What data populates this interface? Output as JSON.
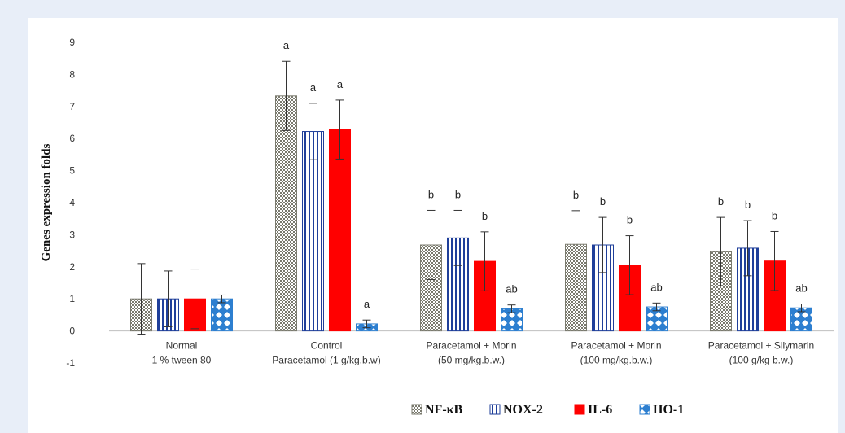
{
  "chart_data": {
    "type": "bar",
    "ylabel": "Genes expression folds",
    "ylim": [
      -1,
      9
    ],
    "yticks": [
      -1,
      0,
      1,
      2,
      3,
      4,
      5,
      6,
      7,
      8,
      9
    ],
    "grid": false,
    "legend_position": "bottom",
    "categories": [
      [
        "Normal",
        "1 % tween 80"
      ],
      [
        "Control",
        "Paracetamol (1 g/kg.b.w)"
      ],
      [
        "Paracetamol + Morin",
        "(50 mg/kg.b.w.)"
      ],
      [
        "Paracetamol + Morin",
        "(100 mg/kg.b.w.)"
      ],
      [
        "Paracetamol + Silymarin",
        "(100 g/kg b.w.)"
      ]
    ],
    "series": [
      {
        "name": "NF-κB",
        "pattern": "checker",
        "color": "#7a7a6e",
        "values": [
          1.0,
          7.33,
          2.68,
          2.7,
          2.47
        ],
        "errors": [
          1.1,
          1.08,
          1.08,
          1.05,
          1.07
        ],
        "labels": [
          "",
          "a",
          "b",
          "b",
          "b"
        ]
      },
      {
        "name": "NOX-2",
        "pattern": "vertical",
        "color": "#1f3f9a",
        "values": [
          1.0,
          6.22,
          2.9,
          2.68,
          2.58
        ],
        "errors": [
          0.87,
          0.88,
          0.86,
          0.86,
          0.86
        ],
        "labels": [
          "",
          "a",
          "b",
          "b",
          "b"
        ]
      },
      {
        "name": "IL-6",
        "pattern": "solid",
        "color": "#ff0000",
        "values": [
          1.0,
          6.28,
          2.17,
          2.05,
          2.18
        ],
        "errors": [
          0.93,
          0.92,
          0.92,
          0.92,
          0.92
        ],
        "labels": [
          "",
          "a",
          "b",
          "b",
          "b"
        ]
      },
      {
        "name": "HO-1",
        "pattern": "diamond",
        "color": "#2d7fd0",
        "values": [
          1.0,
          0.22,
          0.69,
          0.75,
          0.72
        ],
        "errors": [
          0.12,
          0.12,
          0.12,
          0.12,
          0.12
        ],
        "labels": [
          "",
          "a",
          "ab",
          "ab",
          "ab"
        ]
      }
    ]
  }
}
